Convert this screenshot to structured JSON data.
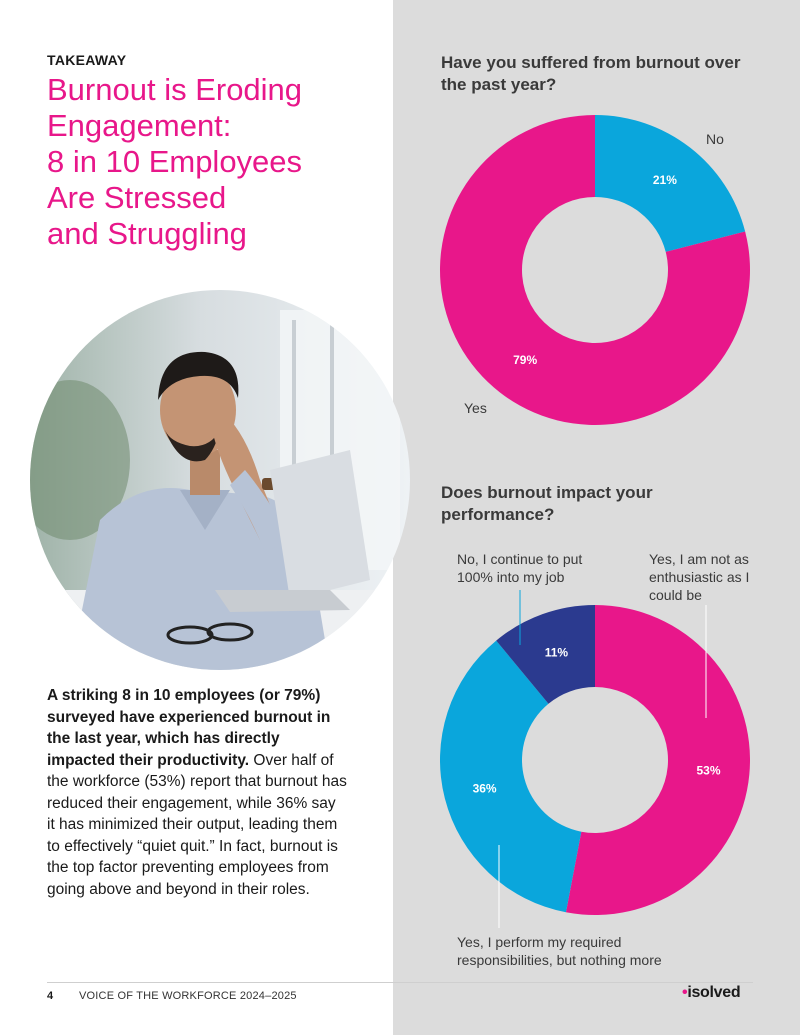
{
  "left": {
    "eyebrow": "TAKEAWAY",
    "headline_lines": [
      "Burnout is Eroding",
      "Engagement:",
      "8 in 10 Employees",
      "Are Stressed",
      "and Struggling"
    ],
    "body_bold": "A striking 8 in 10 employees (or 79%) surveyed have experienced burnout in the last year, which has directly impacted their productivity.",
    "body_regular": " Over half of the workforce (53%) report that burnout has reduced their engagement, while 36% say it has minimized their output, leading them to effectively “quiet quit.” In fact, burnout is the top factor preventing employees from going above and beyond in their roles."
  },
  "footer": {
    "page": "4",
    "title": "VOICE OF THE WORKFORCE 2024–2025",
    "logo": "isolved"
  },
  "colors": {
    "pink": "#e8178a",
    "cyan": "#0aa6dc",
    "navy": "#2b3a8f",
    "panel": "#dcdcdc"
  },
  "chart_data": [
    {
      "type": "pie",
      "donut": true,
      "title": "Have you suffered from burnout over the past year?",
      "categories": [
        "No",
        "Yes"
      ],
      "values": [
        21,
        79
      ],
      "value_labels": [
        "21%",
        "79%"
      ],
      "colors": [
        "#0aa6dc",
        "#e8178a"
      ]
    },
    {
      "type": "pie",
      "donut": true,
      "title": "Does burnout impact your performance?",
      "categories": [
        "Yes, I am not as enthusiastic as I could be",
        "Yes, I perform my required responsibilities, but nothing more",
        "No, I continue to put 100% into my job"
      ],
      "values": [
        53,
        36,
        11
      ],
      "value_labels": [
        "53%",
        "36%",
        "11%"
      ],
      "colors": [
        "#e8178a",
        "#0aa6dc",
        "#2b3a8f"
      ]
    }
  ]
}
